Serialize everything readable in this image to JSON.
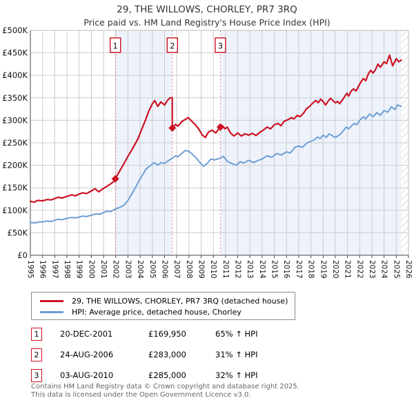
{
  "title": "29, THE WILLOWS, CHORLEY, PR7 3RQ",
  "subtitle": "Price paid vs. HM Land Registry's House Price Index (HPI)",
  "chart_data": {
    "type": "line",
    "x_axis": {
      "min": 1995,
      "max": 2026,
      "years": [
        1995,
        1996,
        1997,
        1998,
        1999,
        2000,
        2001,
        2002,
        2003,
        2004,
        2005,
        2006,
        2007,
        2008,
        2009,
        2010,
        2011,
        2012,
        2013,
        2014,
        2015,
        2016,
        2017,
        2018,
        2019,
        2020,
        2021,
        2022,
        2023,
        2024,
        2025,
        2026
      ]
    },
    "y_axis": {
      "min_k": 0,
      "max_k": 500,
      "tick_step_k": 50,
      "tick_labels": [
        "£0",
        "£50K",
        "£100K",
        "£150K",
        "£200K",
        "£250K",
        "£300K",
        "£350K",
        "£400K",
        "£450K",
        "£500K"
      ]
    },
    "grid": true,
    "legend_position": "bottom",
    "units": "GBP thousands",
    "series": [
      {
        "name": "29, THE WILLOWS, CHORLEY, PR7 3RQ (detached house)",
        "color": "#cc1122",
        "points": [
          [
            1995.0,
            120
          ],
          [
            1995.3,
            118
          ],
          [
            1995.6,
            122
          ],
          [
            1996.0,
            121
          ],
          [
            1996.4,
            124
          ],
          [
            1996.7,
            123
          ],
          [
            1997.0,
            126
          ],
          [
            1997.3,
            129
          ],
          [
            1997.6,
            127
          ],
          [
            1998.0,
            131
          ],
          [
            1998.4,
            134
          ],
          [
            1998.7,
            132
          ],
          [
            1999.0,
            136
          ],
          [
            1999.3,
            139
          ],
          [
            1999.6,
            137
          ],
          [
            2000.0,
            143
          ],
          [
            2000.3,
            148
          ],
          [
            2000.6,
            141
          ],
          [
            2000.9,
            147
          ],
          [
            2001.2,
            152
          ],
          [
            2001.5,
            157
          ],
          [
            2001.8,
            163
          ],
          [
            2001.97,
            170
          ],
          [
            2002.3,
            186
          ],
          [
            2002.6,
            200
          ],
          [
            2003.0,
            220
          ],
          [
            2003.4,
            238
          ],
          [
            2003.8,
            258
          ],
          [
            2004.1,
            278
          ],
          [
            2004.4,
            298
          ],
          [
            2004.7,
            320
          ],
          [
            2005.0,
            337
          ],
          [
            2005.2,
            344
          ],
          [
            2005.45,
            331
          ],
          [
            2005.7,
            341
          ],
          [
            2006.0,
            334
          ],
          [
            2006.2,
            343
          ],
          [
            2006.45,
            350
          ],
          [
            2006.63,
            350
          ],
          [
            2006.64,
            283
          ],
          [
            2006.9,
            291
          ],
          [
            2007.1,
            287
          ],
          [
            2007.4,
            297
          ],
          [
            2007.7,
            302
          ],
          [
            2007.95,
            306
          ],
          [
            2008.2,
            299
          ],
          [
            2008.5,
            291
          ],
          [
            2008.8,
            281
          ],
          [
            2009.1,
            267
          ],
          [
            2009.35,
            262
          ],
          [
            2009.6,
            274
          ],
          [
            2009.9,
            278
          ],
          [
            2010.2,
            272
          ],
          [
            2010.4,
            279
          ],
          [
            2010.58,
            285
          ],
          [
            2010.75,
            288
          ],
          [
            2010.95,
            281
          ],
          [
            2011.15,
            285
          ],
          [
            2011.4,
            272
          ],
          [
            2011.7,
            265
          ],
          [
            2012.0,
            272
          ],
          [
            2012.3,
            265
          ],
          [
            2012.6,
            270
          ],
          [
            2012.9,
            267
          ],
          [
            2013.2,
            271
          ],
          [
            2013.5,
            266
          ],
          [
            2013.8,
            273
          ],
          [
            2014.1,
            278
          ],
          [
            2014.4,
            285
          ],
          [
            2014.7,
            281
          ],
          [
            2015.0,
            290
          ],
          [
            2015.3,
            293
          ],
          [
            2015.55,
            288
          ],
          [
            2015.8,
            298
          ],
          [
            2016.1,
            301
          ],
          [
            2016.4,
            306
          ],
          [
            2016.6,
            303
          ],
          [
            2016.9,
            311
          ],
          [
            2017.1,
            308
          ],
          [
            2017.4,
            316
          ],
          [
            2017.65,
            326
          ],
          [
            2017.9,
            331
          ],
          [
            2018.1,
            337
          ],
          [
            2018.4,
            344
          ],
          [
            2018.6,
            339
          ],
          [
            2018.8,
            347
          ],
          [
            2019.0,
            342
          ],
          [
            2019.2,
            334
          ],
          [
            2019.4,
            342
          ],
          [
            2019.6,
            349
          ],
          [
            2019.8,
            344
          ],
          [
            2020.0,
            339
          ],
          [
            2020.2,
            342
          ],
          [
            2020.35,
            337
          ],
          [
            2020.55,
            344
          ],
          [
            2020.75,
            352
          ],
          [
            2020.95,
            360
          ],
          [
            2021.1,
            354
          ],
          [
            2021.3,
            365
          ],
          [
            2021.5,
            370
          ],
          [
            2021.7,
            365
          ],
          [
            2021.95,
            378
          ],
          [
            2022.1,
            385
          ],
          [
            2022.3,
            393
          ],
          [
            2022.5,
            388
          ],
          [
            2022.7,
            403
          ],
          [
            2022.9,
            411
          ],
          [
            2023.1,
            405
          ],
          [
            2023.3,
            413
          ],
          [
            2023.5,
            425
          ],
          [
            2023.7,
            418
          ],
          [
            2024.0,
            430
          ],
          [
            2024.2,
            426
          ],
          [
            2024.45,
            445
          ],
          [
            2024.7,
            421
          ],
          [
            2025.0,
            437
          ],
          [
            2025.2,
            430
          ],
          [
            2025.42,
            434
          ]
        ]
      },
      {
        "name": "HPI: Average price, detached house, Chorley",
        "color": "#6d9ed4",
        "points": [
          [
            1995.0,
            73
          ],
          [
            1995.4,
            72
          ],
          [
            1995.7,
            74
          ],
          [
            1996.0,
            74
          ],
          [
            1996.4,
            76
          ],
          [
            1996.7,
            75
          ],
          [
            1997.0,
            78
          ],
          [
            1997.3,
            80
          ],
          [
            1997.6,
            79
          ],
          [
            1998.0,
            82
          ],
          [
            1998.4,
            84
          ],
          [
            1998.7,
            83
          ],
          [
            1999.0,
            85
          ],
          [
            1999.3,
            87
          ],
          [
            1999.6,
            86
          ],
          [
            2000.0,
            89
          ],
          [
            2000.4,
            92
          ],
          [
            2000.7,
            91
          ],
          [
            2001.0,
            95
          ],
          [
            2001.3,
            98
          ],
          [
            2001.6,
            97
          ],
          [
            2002.0,
            103
          ],
          [
            2002.4,
            107
          ],
          [
            2002.7,
            112
          ],
          [
            2003.0,
            122
          ],
          [
            2003.5,
            145
          ],
          [
            2004.0,
            170
          ],
          [
            2004.5,
            192
          ],
          [
            2005.0,
            203
          ],
          [
            2005.2,
            206
          ],
          [
            2005.45,
            200
          ],
          [
            2005.7,
            206
          ],
          [
            2006.0,
            204
          ],
          [
            2006.3,
            210
          ],
          [
            2006.64,
            216
          ],
          [
            2006.9,
            221
          ],
          [
            2007.1,
            219
          ],
          [
            2007.4,
            226
          ],
          [
            2007.7,
            233
          ],
          [
            2008.0,
            231
          ],
          [
            2008.3,
            224
          ],
          [
            2008.6,
            216
          ],
          [
            2009.0,
            203
          ],
          [
            2009.2,
            198
          ],
          [
            2009.5,
            204
          ],
          [
            2009.8,
            214
          ],
          [
            2010.1,
            212
          ],
          [
            2010.35,
            214
          ],
          [
            2010.58,
            216
          ],
          [
            2010.8,
            220
          ],
          [
            2011.2,
            208
          ],
          [
            2011.5,
            204
          ],
          [
            2011.9,
            200
          ],
          [
            2012.2,
            208
          ],
          [
            2012.5,
            205
          ],
          [
            2012.9,
            211
          ],
          [
            2013.3,
            206
          ],
          [
            2013.7,
            211
          ],
          [
            2014.0,
            214
          ],
          [
            2014.4,
            221
          ],
          [
            2014.8,
            218
          ],
          [
            2015.2,
            226
          ],
          [
            2015.6,
            223
          ],
          [
            2016.0,
            230
          ],
          [
            2016.3,
            227
          ],
          [
            2016.7,
            240
          ],
          [
            2017.0,
            243
          ],
          [
            2017.3,
            240
          ],
          [
            2017.7,
            250
          ],
          [
            2018.0,
            253
          ],
          [
            2018.3,
            257
          ],
          [
            2018.55,
            263
          ],
          [
            2018.75,
            259
          ],
          [
            2019.0,
            267
          ],
          [
            2019.25,
            262
          ],
          [
            2019.5,
            270
          ],
          [
            2019.75,
            266
          ],
          [
            2020.0,
            262
          ],
          [
            2020.2,
            265
          ],
          [
            2020.45,
            270
          ],
          [
            2020.7,
            278
          ],
          [
            2020.9,
            285
          ],
          [
            2021.1,
            281
          ],
          [
            2021.35,
            288
          ],
          [
            2021.55,
            293
          ],
          [
            2021.75,
            290
          ],
          [
            2022.0,
            300
          ],
          [
            2022.3,
            308
          ],
          [
            2022.5,
            303
          ],
          [
            2022.8,
            314
          ],
          [
            2023.1,
            308
          ],
          [
            2023.4,
            317
          ],
          [
            2023.7,
            311
          ],
          [
            2024.0,
            322
          ],
          [
            2024.3,
            318
          ],
          [
            2024.6,
            330
          ],
          [
            2024.9,
            324
          ],
          [
            2025.1,
            334
          ],
          [
            2025.42,
            331
          ]
        ]
      }
    ],
    "sale_markers": [
      {
        "num": "1",
        "year": 2001.97,
        "price_k": 169.95
      },
      {
        "num": "2",
        "year": 2006.64,
        "price_k": 283,
        "pre_drop_k": 350
      },
      {
        "num": "3",
        "year": 2010.58,
        "price_k": 285
      }
    ],
    "shaded_periods": [
      [
        2001.97,
        2006.64
      ],
      [
        2010.58,
        2025.42
      ]
    ],
    "future_hatch": [
      2025.42,
      2026
    ],
    "colors": {
      "shade": "#edf2fb",
      "sale_line": "#ee8888",
      "grid": "#cccccc",
      "axis": "#444444",
      "border": "#bbbbbb",
      "hatch": "#c8c8c8",
      "marker_box_border": "#cc1122",
      "tick_text": "#111111"
    }
  },
  "legend": {
    "items": [
      {
        "label": "29, THE WILLOWS, CHORLEY, PR7 3RQ (detached house)"
      },
      {
        "label": "HPI: Average price, detached house, Chorley"
      }
    ]
  },
  "transactions": [
    {
      "num": "1",
      "date": "20-DEC-2001",
      "price": "£169,950",
      "hpi": "65% ↑ HPI"
    },
    {
      "num": "2",
      "date": "24-AUG-2006",
      "price": "£283,000",
      "hpi": "31% ↑ HPI"
    },
    {
      "num": "3",
      "date": "03-AUG-2010",
      "price": "£285,000",
      "hpi": "32% ↑ HPI"
    }
  ],
  "footer": {
    "line1": "Contains HM Land Registry data © Crown copyright and database right 2025.",
    "line2": "This data is licensed under the Open Government Licence v3.0."
  }
}
